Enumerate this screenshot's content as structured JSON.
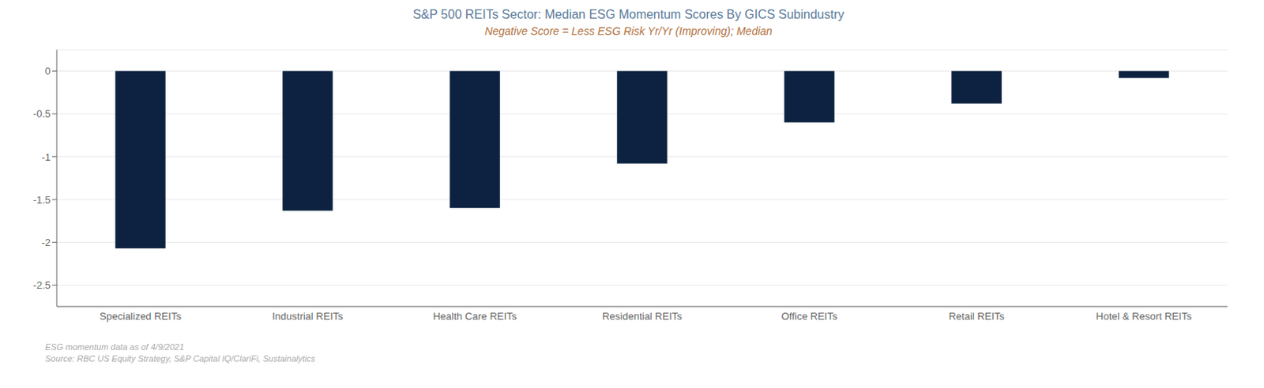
{
  "chart_data": {
    "type": "bar",
    "title": "S&P 500 REITs Sector: Median ESG Momentum Scores By GICS Subindustry",
    "subtitle": "Negative Score = Less ESG Risk Yr/Yr (Improving); Median",
    "categories": [
      "Specialized REITs",
      "Industrial REITs",
      "Health Care REITs",
      "Residential REITs",
      "Office REITs",
      "Retail REITs",
      "Hotel & Resort REITs"
    ],
    "values": [
      -2.07,
      -1.63,
      -1.6,
      -1.08,
      -0.6,
      -0.38,
      -0.08
    ],
    "color": "#0d2240",
    "ylim": [
      -2.75,
      0.25
    ],
    "yticks": [
      0,
      -0.5,
      -1,
      -1.5,
      -2,
      -2.5
    ],
    "grid": true,
    "annotations": [
      "ESG momentum data as of 4/9/2021",
      "Source:  RBC US Equity Strategy, S&P Capital IQ/ClariFi, Sustainalytics"
    ]
  }
}
